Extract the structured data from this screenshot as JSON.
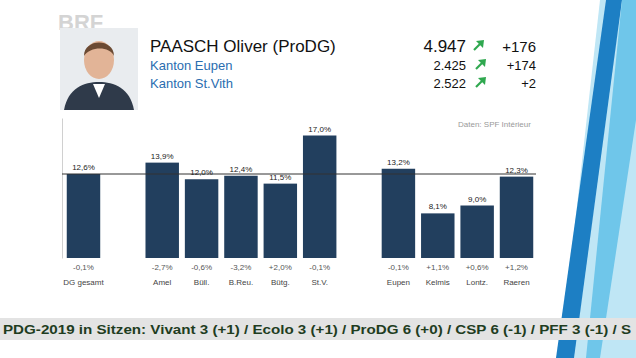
{
  "logo": "BRF",
  "header": {
    "name": "PAASCH Oliver (ProDG)",
    "total": "4.947",
    "change": "+176",
    "rows": [
      {
        "label": "Kanton Eupen",
        "votes": "2.425",
        "change": "+174"
      },
      {
        "label": "Kanton St.Vith",
        "votes": "2.522",
        "change": "+2"
      }
    ]
  },
  "source": "Daten: SPF Intérieur",
  "ticker": "PDG-2019 in Sitzen: Vivant 3 (+1) / Ecolo 3 (+1) / ProDG 6 (+0) / CSP 6 (-1) / PFF 3 (-1) / S",
  "chart_data": {
    "type": "bar",
    "categories": [
      "DG gesamt",
      null,
      "Amel",
      "Büll.",
      "B.Reu.",
      "Bütg.",
      "St.V.",
      null,
      "Eupen",
      "Kelmis",
      "Lontz.",
      "Raeren"
    ],
    "values": [
      12.6,
      null,
      13.9,
      12.0,
      12.4,
      11.5,
      17.0,
      null,
      13.2,
      8.1,
      9.0,
      12.3
    ],
    "value_labels": [
      "12,6%",
      null,
      "13,9%",
      "12,0%",
      "12,4%",
      "11,5%",
      "17,0%",
      null,
      "13,2%",
      "8,1%",
      "9,0%",
      "12,3%"
    ],
    "change_labels": [
      "-0,1%",
      null,
      "-2,7%",
      "-0,6%",
      "-3,2%",
      "+2,0%",
      "-0,1%",
      null,
      "-0,1%",
      "+1,1%",
      "+0,6%",
      "+1,2%"
    ],
    "color": "#223f5e",
    "ylim": [
      3,
      19
    ],
    "yticks": [],
    "tick_labels": "x",
    "data_labels": true,
    "grid": false
  }
}
